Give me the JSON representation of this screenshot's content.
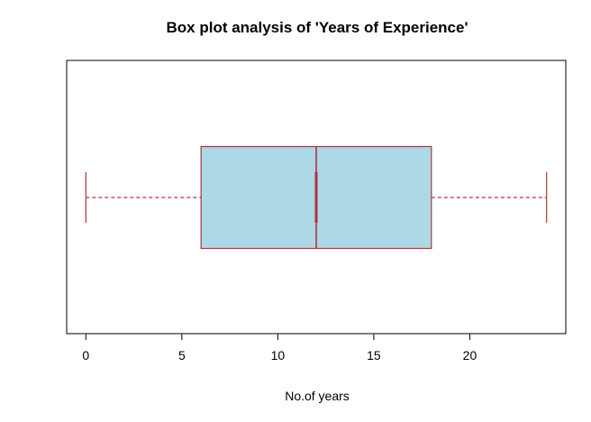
{
  "chart_data": {
    "type": "boxplot",
    "orientation": "horizontal",
    "title": "Box plot analysis of 'Years of Experience'",
    "xlabel": "No.of years",
    "ylabel": "",
    "xlim": [
      -1,
      25
    ],
    "x_ticks": [
      0,
      5,
      10,
      15,
      20
    ],
    "x_tick_labels": [
      "0",
      "5",
      "10",
      "15",
      "20"
    ],
    "grid": false,
    "legend": "none",
    "boxes": [
      {
        "min": 0,
        "q1": 6,
        "median": 12,
        "q3": 18,
        "max": 24
      }
    ],
    "colors": {
      "box_fill": "#add8e6",
      "box_border": "#b2333a",
      "median": "#b2333a",
      "whisker": "#b2333a",
      "axis": "#000000"
    }
  }
}
